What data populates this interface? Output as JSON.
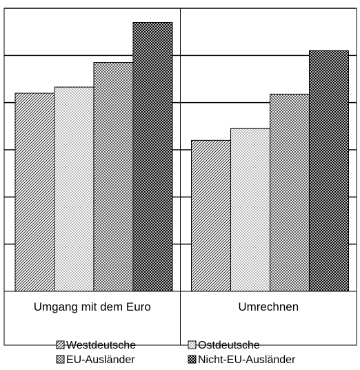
{
  "chart_data": {
    "type": "bar",
    "categories": [
      "Umgang mit dem Euro",
      "Umrechnen"
    ],
    "series": [
      {
        "name": "Westdeutsche",
        "values": [
          4.2,
          3.2
        ]
      },
      {
        "name": "Ostdeutsche",
        "values": [
          4.33,
          3.45
        ]
      },
      {
        "name": "EU-Ausländer",
        "values": [
          4.85,
          4.18
        ]
      },
      {
        "name": "Nicht-EU-Ausländer",
        "values": [
          5.7,
          5.1
        ]
      }
    ],
    "ylim": [
      0,
      6
    ],
    "grid": true,
    "legend_position": "bottom",
    "title": "",
    "xlabel": "",
    "ylabel": ""
  }
}
